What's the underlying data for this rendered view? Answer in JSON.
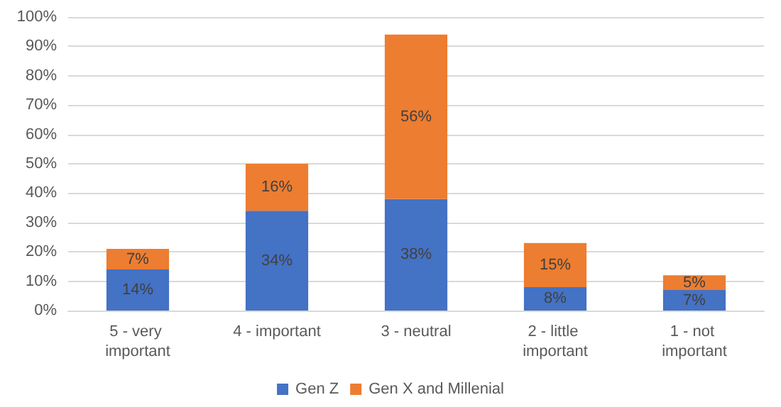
{
  "chart_data": {
    "type": "bar",
    "stacked": true,
    "categories": [
      "5 - very important",
      "4 - important",
      "3 - neutral",
      "2 - little important",
      "1 - not important"
    ],
    "series": [
      {
        "name": "Gen Z",
        "color": "#4472c4",
        "values": [
          14,
          34,
          38,
          8,
          7
        ],
        "value_labels": [
          "14%",
          "34%",
          "38%",
          "8%",
          "7%"
        ]
      },
      {
        "name": "Gen X and Millenial",
        "color": "#ed7d31",
        "values": [
          7,
          16,
          56,
          15,
          5
        ],
        "value_labels": [
          "7%",
          "16%",
          "56%",
          "15%",
          "5%"
        ]
      }
    ],
    "ylim": [
      0,
      100
    ],
    "yticks": [
      {
        "value": 0,
        "label": "0%"
      },
      {
        "value": 10,
        "label": "10%"
      },
      {
        "value": 20,
        "label": "20%"
      },
      {
        "value": 30,
        "label": "30%"
      },
      {
        "value": 40,
        "label": "40%"
      },
      {
        "value": 50,
        "label": "50%"
      },
      {
        "value": 60,
        "label": "60%"
      },
      {
        "value": 70,
        "label": "70%"
      },
      {
        "value": 80,
        "label": "80%"
      },
      {
        "value": 90,
        "label": "90%"
      },
      {
        "value": 100,
        "label": "100%"
      }
    ],
    "grid": "y",
    "legend": "bottom"
  }
}
